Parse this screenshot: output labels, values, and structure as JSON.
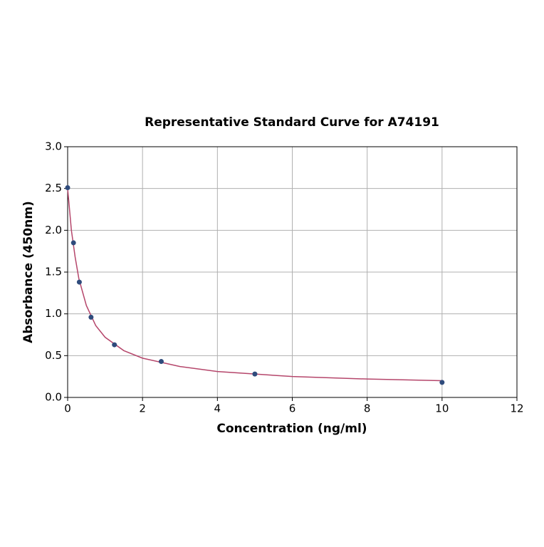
{
  "chart_data": {
    "type": "scatter",
    "title": "Representative Standard Curve for A74191",
    "xlabel": "Concentration (ng/ml)",
    "ylabel": "Absorbance (450nm)",
    "xlim": [
      0,
      12
    ],
    "ylim": [
      0,
      3
    ],
    "xticks": [
      0,
      2,
      4,
      6,
      8,
      10,
      12
    ],
    "yticks": [
      {
        "value": 0,
        "label": "0.0"
      },
      {
        "value": 0.5,
        "label": "0.5"
      },
      {
        "value": 1,
        "label": "1.0"
      },
      {
        "value": 1.5,
        "label": "1.5"
      },
      {
        "value": 2,
        "label": "2.0"
      },
      {
        "value": 2.5,
        "label": "2.5"
      },
      {
        "value": 3,
        "label": "3.0"
      }
    ],
    "grid": true,
    "series": [
      {
        "type": "line",
        "color": "#b5466b",
        "x": [
          0,
          0.1,
          0.2,
          0.3,
          0.5,
          0.75,
          1,
          1.5,
          2,
          3,
          4,
          5,
          6,
          8,
          10
        ],
        "values": [
          2.5,
          2.0,
          1.68,
          1.42,
          1.1,
          0.86,
          0.72,
          0.56,
          0.47,
          0.37,
          0.31,
          0.28,
          0.25,
          0.22,
          0.2
        ]
      },
      {
        "type": "scatter",
        "color": "#2f4b7c",
        "x": [
          0,
          0.156,
          0.312,
          0.625,
          1.25,
          2.5,
          5,
          10
        ],
        "values": [
          2.51,
          1.85,
          1.38,
          0.96,
          0.63,
          0.43,
          0.28,
          0.18
        ]
      }
    ]
  }
}
